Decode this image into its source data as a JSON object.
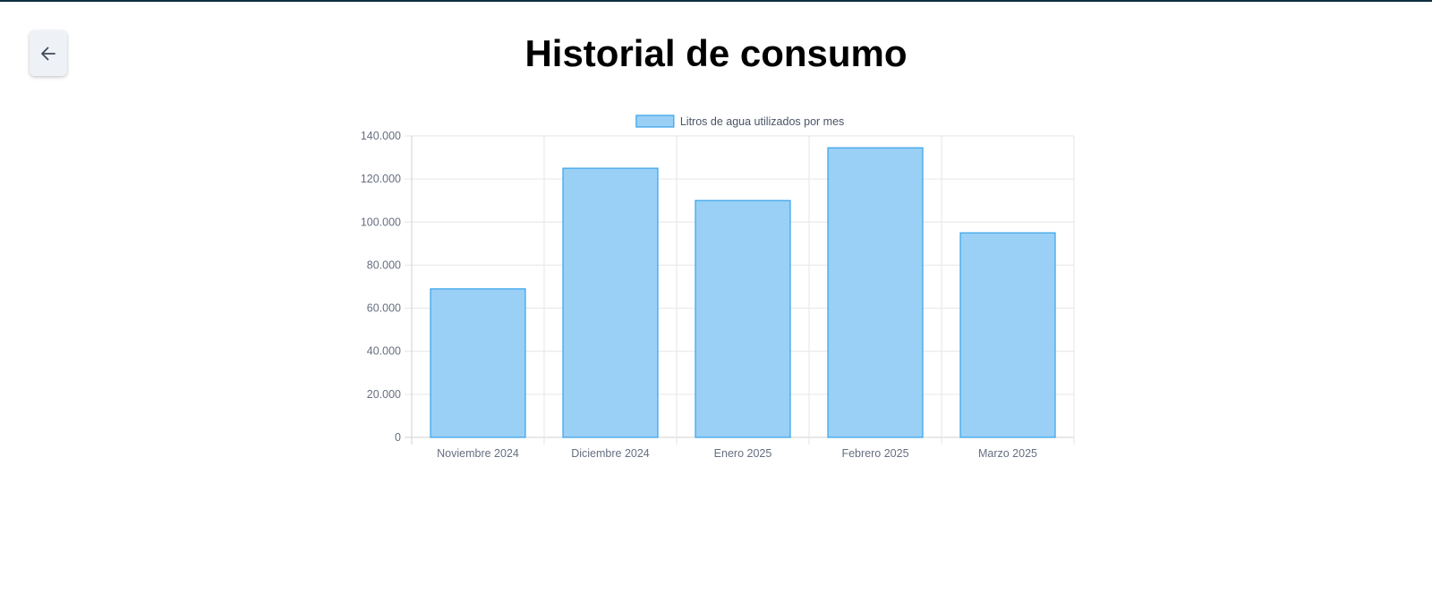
{
  "page": {
    "title": "Historial de consumo",
    "back_icon": "arrow-left-icon",
    "accent": "#0f2f3f"
  },
  "chart_data": {
    "type": "bar",
    "categories": [
      "Noviembre 2024",
      "Diciembre 2024",
      "Enero 2025",
      "Febrero 2025",
      "Marzo 2025"
    ],
    "series": [
      {
        "name": "Litros de agua utilizados por mes",
        "values": [
          69000,
          125000,
          110000,
          134500,
          95000
        ],
        "fill": "#9ad0f5",
        "stroke": "#36a2eb"
      }
    ],
    "ylim": [
      0,
      140000
    ],
    "yticks": [
      "0",
      "20.000",
      "40.000",
      "60.000",
      "80.000",
      "100.000",
      "120.000",
      "140.000"
    ],
    "ytick_values": [
      0,
      20000,
      40000,
      60000,
      80000,
      100000,
      120000,
      140000
    ],
    "grid": true,
    "legend_position": "top-center",
    "xlabel": "",
    "ylabel": ""
  }
}
